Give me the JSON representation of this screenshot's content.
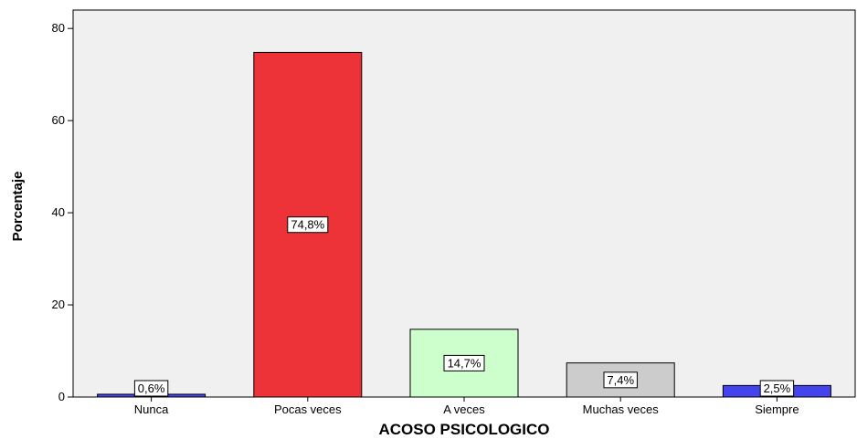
{
  "chart_data": {
    "type": "bar",
    "title": "",
    "xlabel": "ACOSO PSICOLOGICO",
    "ylabel": "Porcentaje",
    "ylim": [
      0,
      84
    ],
    "yticks": [
      0,
      20,
      40,
      60,
      80
    ],
    "categories": [
      "Nunca",
      "Pocas veces",
      "A veces",
      "Muchas veces",
      "Siempre"
    ],
    "values": [
      0.6,
      74.8,
      14.7,
      7.4,
      2.5
    ],
    "data_labels": [
      "0,6%",
      "74,8%",
      "14,7%",
      "7,4%",
      "2,5%"
    ],
    "bar_colors": [
      "#4444ee",
      "#ee3338",
      "#ccffcc",
      "#cccccc",
      "#4444ee"
    ],
    "plot_background": "#f0f0f0",
    "grid": false,
    "legend": "none"
  }
}
